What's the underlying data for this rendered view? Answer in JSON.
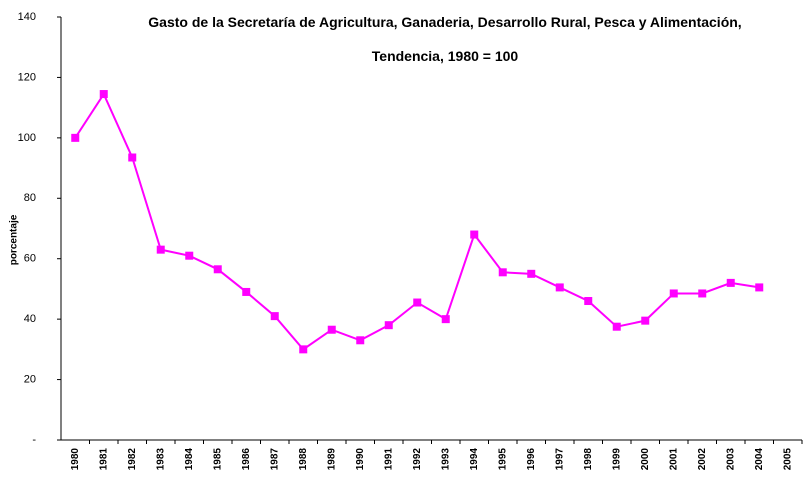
{
  "chart_data": {
    "type": "line",
    "title": "Gasto de la Secretaría de Agricultura, Ganaderia, Desarrollo Rural, Pesca y Alimentación,",
    "subtitle": "Tendencia, 1980 = 100",
    "y_label": "porcentaje",
    "categories": [
      "1980",
      "1981",
      "1982",
      "1983",
      "1984",
      "1985",
      "1986",
      "1987",
      "1988",
      "1989",
      "1990",
      "1991",
      "1992",
      "1993",
      "1994",
      "1995",
      "1996",
      "1997",
      "1998",
      "1999",
      "2000",
      "2001",
      "2002",
      "2003",
      "2004",
      "2005"
    ],
    "series": [
      {
        "color": "#ff00ff",
        "values": [
          100,
          114.5,
          93.5,
          63,
          61,
          56.5,
          49,
          41,
          30,
          36.5,
          33,
          38,
          45.5,
          40,
          68,
          55.5,
          55,
          50.5,
          46,
          37.5,
          39.5,
          48.5,
          48.5,
          52,
          50.5,
          null
        ]
      }
    ],
    "ylim": [
      0,
      140
    ],
    "yticks": [
      {
        "value": 0,
        "label": "-"
      },
      20,
      40,
      60,
      80,
      100,
      120,
      140
    ],
    "grid": false
  }
}
